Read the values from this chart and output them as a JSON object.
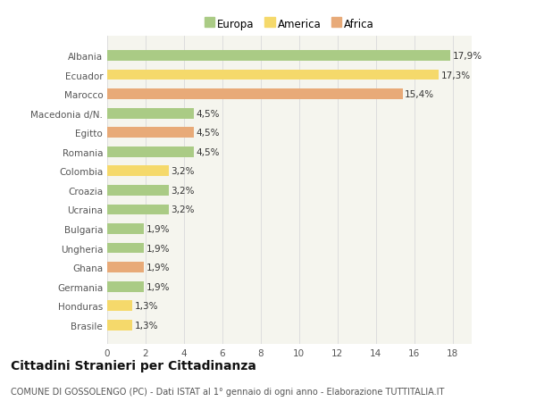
{
  "countries": [
    "Albania",
    "Ecuador",
    "Marocco",
    "Macedonia d/N.",
    "Egitto",
    "Romania",
    "Colombia",
    "Croazia",
    "Ucraina",
    "Bulgaria",
    "Ungheria",
    "Ghana",
    "Germania",
    "Honduras",
    "Brasile"
  ],
  "values": [
    17.9,
    17.3,
    15.4,
    4.5,
    4.5,
    4.5,
    3.2,
    3.2,
    3.2,
    1.9,
    1.9,
    1.9,
    1.9,
    1.3,
    1.3
  ],
  "labels": [
    "17,9%",
    "17,3%",
    "15,4%",
    "4,5%",
    "4,5%",
    "4,5%",
    "3,2%",
    "3,2%",
    "3,2%",
    "1,9%",
    "1,9%",
    "1,9%",
    "1,9%",
    "1,3%",
    "1,3%"
  ],
  "continents": [
    "Europa",
    "America",
    "Africa",
    "Europa",
    "Africa",
    "Europa",
    "America",
    "Europa",
    "Europa",
    "Europa",
    "Europa",
    "Africa",
    "Europa",
    "America",
    "America"
  ],
  "colors": {
    "Europa": "#aacb85",
    "America": "#f5d96b",
    "Africa": "#e8aa78"
  },
  "xlim": [
    0,
    19
  ],
  "xticks": [
    0,
    2,
    4,
    6,
    8,
    10,
    12,
    14,
    16,
    18
  ],
  "title": "Cittadini Stranieri per Cittadinanza",
  "subtitle": "COMUNE DI GOSSOLENGO (PC) - Dati ISTAT al 1° gennaio di ogni anno - Elaborazione TUTTITALIA.IT",
  "background_color": "#ffffff",
  "plot_bg_color": "#f5f5ee",
  "grid_color": "#dddddd",
  "bar_height": 0.55,
  "label_fontsize": 7.5,
  "tick_fontsize": 7.5,
  "title_fontsize": 10,
  "subtitle_fontsize": 7,
  "legend_fontsize": 8.5
}
